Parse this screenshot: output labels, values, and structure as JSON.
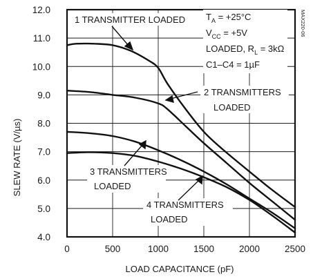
{
  "chart_data": {
    "type": "line",
    "title": "",
    "xlabel": "LOAD CAPACITANCE (pF)",
    "ylabel": "SLEW RATE (V/µs)",
    "xlim": [
      0,
      2500
    ],
    "ylim": [
      4.0,
      12.0
    ],
    "x_ticks": [
      "0",
      "500",
      "1000",
      "1500",
      "2000",
      "2500"
    ],
    "y_ticks": [
      "4.0",
      "5.0",
      "6.0",
      "7.0",
      "8.0",
      "9.0",
      "10.0",
      "11.0",
      "12.0"
    ],
    "grid": true,
    "series": [
      {
        "name": "1 TRANSMITTER LOADED",
        "x": [
          0,
          100,
          300,
          500,
          700,
          900,
          1000,
          1100,
          1300,
          1500,
          1700,
          2000,
          2250,
          2500
        ],
        "y": [
          10.75,
          10.8,
          10.8,
          10.75,
          10.55,
          10.2,
          9.95,
          9.4,
          8.5,
          7.7,
          7.1,
          6.3,
          5.65,
          5.05
        ]
      },
      {
        "name": "2 TRANSMITTERS LOADED",
        "x": [
          0,
          250,
          500,
          750,
          1000,
          1100,
          1300,
          1500,
          1750,
          2000,
          2250,
          2500
        ],
        "y": [
          9.15,
          9.1,
          9.0,
          8.9,
          8.7,
          8.5,
          7.9,
          7.3,
          6.6,
          5.9,
          5.25,
          4.6
        ]
      },
      {
        "name": "3 TRANSMITTERS LOADED",
        "x": [
          0,
          250,
          500,
          750,
          1000,
          1250,
          1500,
          1750,
          2000,
          2250,
          2500
        ],
        "y": [
          7.7,
          7.65,
          7.55,
          7.35,
          7.05,
          6.7,
          6.3,
          5.85,
          5.35,
          4.85,
          4.3
        ]
      },
      {
        "name": "4 TRANSMITTERS LOADED",
        "x": [
          0,
          250,
          500,
          750,
          1000,
          1250,
          1500,
          1750,
          2000,
          2250,
          2500
        ],
        "y": [
          6.95,
          6.98,
          6.95,
          6.85,
          6.65,
          6.4,
          6.1,
          5.75,
          5.3,
          4.75,
          4.15
        ]
      }
    ],
    "labels": {
      "s1": "1 TRANSMITTER LOADED",
      "s2a": "2 TRANSMITTERS",
      "s2b": "LOADED",
      "s3a": "3 TRANSMITTERS",
      "s3b": "LOADED",
      "s4a": "4 TRANSMITTERS",
      "s4b": "LOADED"
    },
    "conditions": {
      "ta_main": "T",
      "ta_sub": "A",
      "ta_tail": " = +25°C",
      "vcc_main": "V",
      "vcc_sub": "CC",
      "vcc_tail": " = +5V",
      "rl_head": "LOADED, R",
      "rl_sub": "L",
      "rl_tail": " = 3kΩ",
      "cap": "C1–C4 = 1µF"
    },
    "part_id": "MAX220-06"
  }
}
